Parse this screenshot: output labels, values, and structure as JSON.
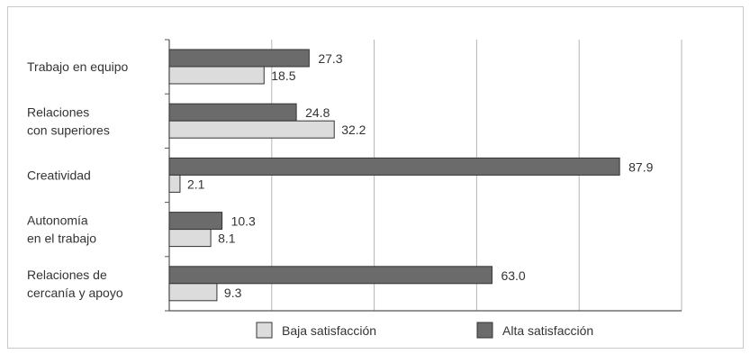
{
  "chart_data": {
    "type": "bar",
    "orientation": "horizontal",
    "title": "",
    "xlabel": "",
    "ylabel": "",
    "categories": [
      [
        "Trabajo en equipo"
      ],
      [
        "Relaciones",
        "con superiores"
      ],
      [
        "Creatividad"
      ],
      [
        "Autonomía",
        "en el trabajo"
      ],
      [
        "Relaciones de",
        "cercanía y apoyo"
      ]
    ],
    "series": [
      {
        "name": "Alta satisfacción",
        "color": "#6b6b6b",
        "values": [
          27.3,
          24.8,
          87.9,
          10.3,
          63.0
        ],
        "labels": [
          "27.3",
          "24.8",
          "87.9",
          "10.3",
          "63.0"
        ]
      },
      {
        "name": "Baja satisfacción",
        "color": "#dcdcdc",
        "values": [
          18.5,
          32.2,
          2.1,
          8.1,
          9.3
        ],
        "labels": [
          "18.5",
          "32.2",
          "2.1",
          "8.1",
          "9.3"
        ]
      }
    ],
    "xlim": [
      0,
      100
    ],
    "gridlines": [
      20,
      40,
      60,
      80,
      100
    ],
    "grid": true,
    "legend": {
      "position": "bottom",
      "order": [
        "Baja satisfacción",
        "Alta satisfacción"
      ]
    }
  }
}
